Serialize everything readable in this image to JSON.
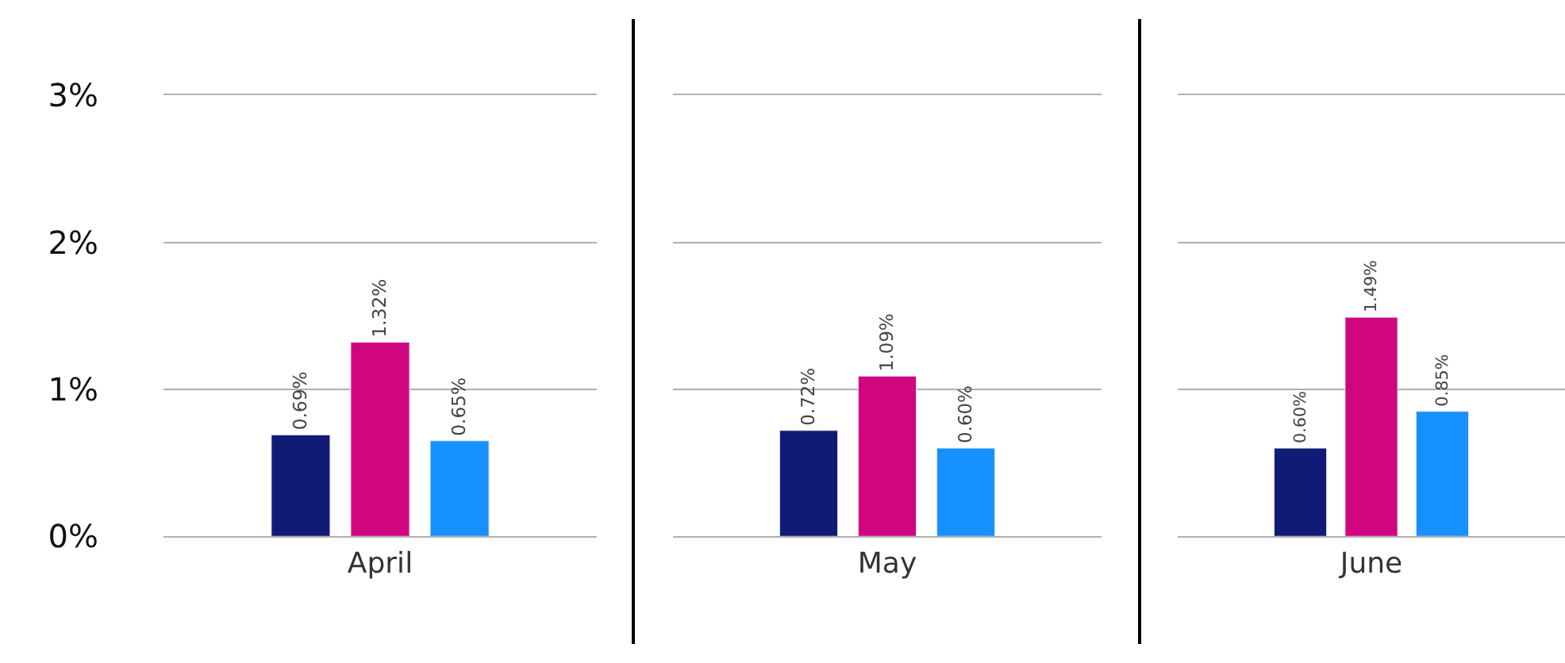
{
  "chart_data": [
    {
      "type": "bar",
      "categories": [
        "April"
      ],
      "ylim": [
        0,
        3
      ],
      "yticks": [
        {
          "value": 0,
          "label": "0%"
        },
        {
          "value": 1,
          "label": "1%"
        },
        {
          "value": 2,
          "label": "2%"
        },
        {
          "value": 3,
          "label": "3%"
        }
      ],
      "grid": "y",
      "series": [
        {
          "color": "#111b75",
          "values": [
            0.69
          ],
          "value_labels": [
            "0.69%"
          ]
        },
        {
          "color": "#d0057f",
          "values": [
            1.32
          ],
          "value_labels": [
            "1.32%"
          ]
        },
        {
          "color": "#1690fe",
          "values": [
            0.65
          ],
          "value_labels": [
            "0.65%"
          ]
        }
      ]
    },
    {
      "type": "bar",
      "categories": [
        "May"
      ],
      "ylim": [
        0,
        3
      ],
      "yticks": [
        {
          "value": 0,
          "label": null
        },
        {
          "value": 1,
          "label": null
        },
        {
          "value": 2,
          "label": null
        },
        {
          "value": 3,
          "label": null
        }
      ],
      "grid": "y",
      "tick_labels": "x",
      "series": [
        {
          "color": "#111b75",
          "values": [
            0.72
          ],
          "value_labels": [
            "0.72%"
          ]
        },
        {
          "color": "#d0057f",
          "values": [
            1.09
          ],
          "value_labels": [
            "1.09%"
          ]
        },
        {
          "color": "#1690fe",
          "values": [
            0.6
          ],
          "value_labels": [
            "0.60%"
          ]
        }
      ]
    },
    {
      "type": "bar",
      "categories": [
        "June"
      ],
      "ylim": [
        0,
        3
      ],
      "yticks": [
        {
          "value": 0,
          "label": null
        },
        {
          "value": 1,
          "label": null
        },
        {
          "value": 2,
          "label": null
        },
        {
          "value": 3,
          "label": null
        }
      ],
      "grid": "y",
      "tick_labels": "x",
      "series": [
        {
          "color": "#111b75",
          "values": [
            0.6
          ],
          "value_labels": [
            "0.60%"
          ]
        },
        {
          "color": "#d0057f",
          "values": [
            1.49
          ],
          "value_labels": [
            "1.49%"
          ]
        },
        {
          "color": "#1690fe",
          "values": [
            0.85
          ],
          "value_labels": [
            "0.85%"
          ]
        }
      ]
    }
  ]
}
